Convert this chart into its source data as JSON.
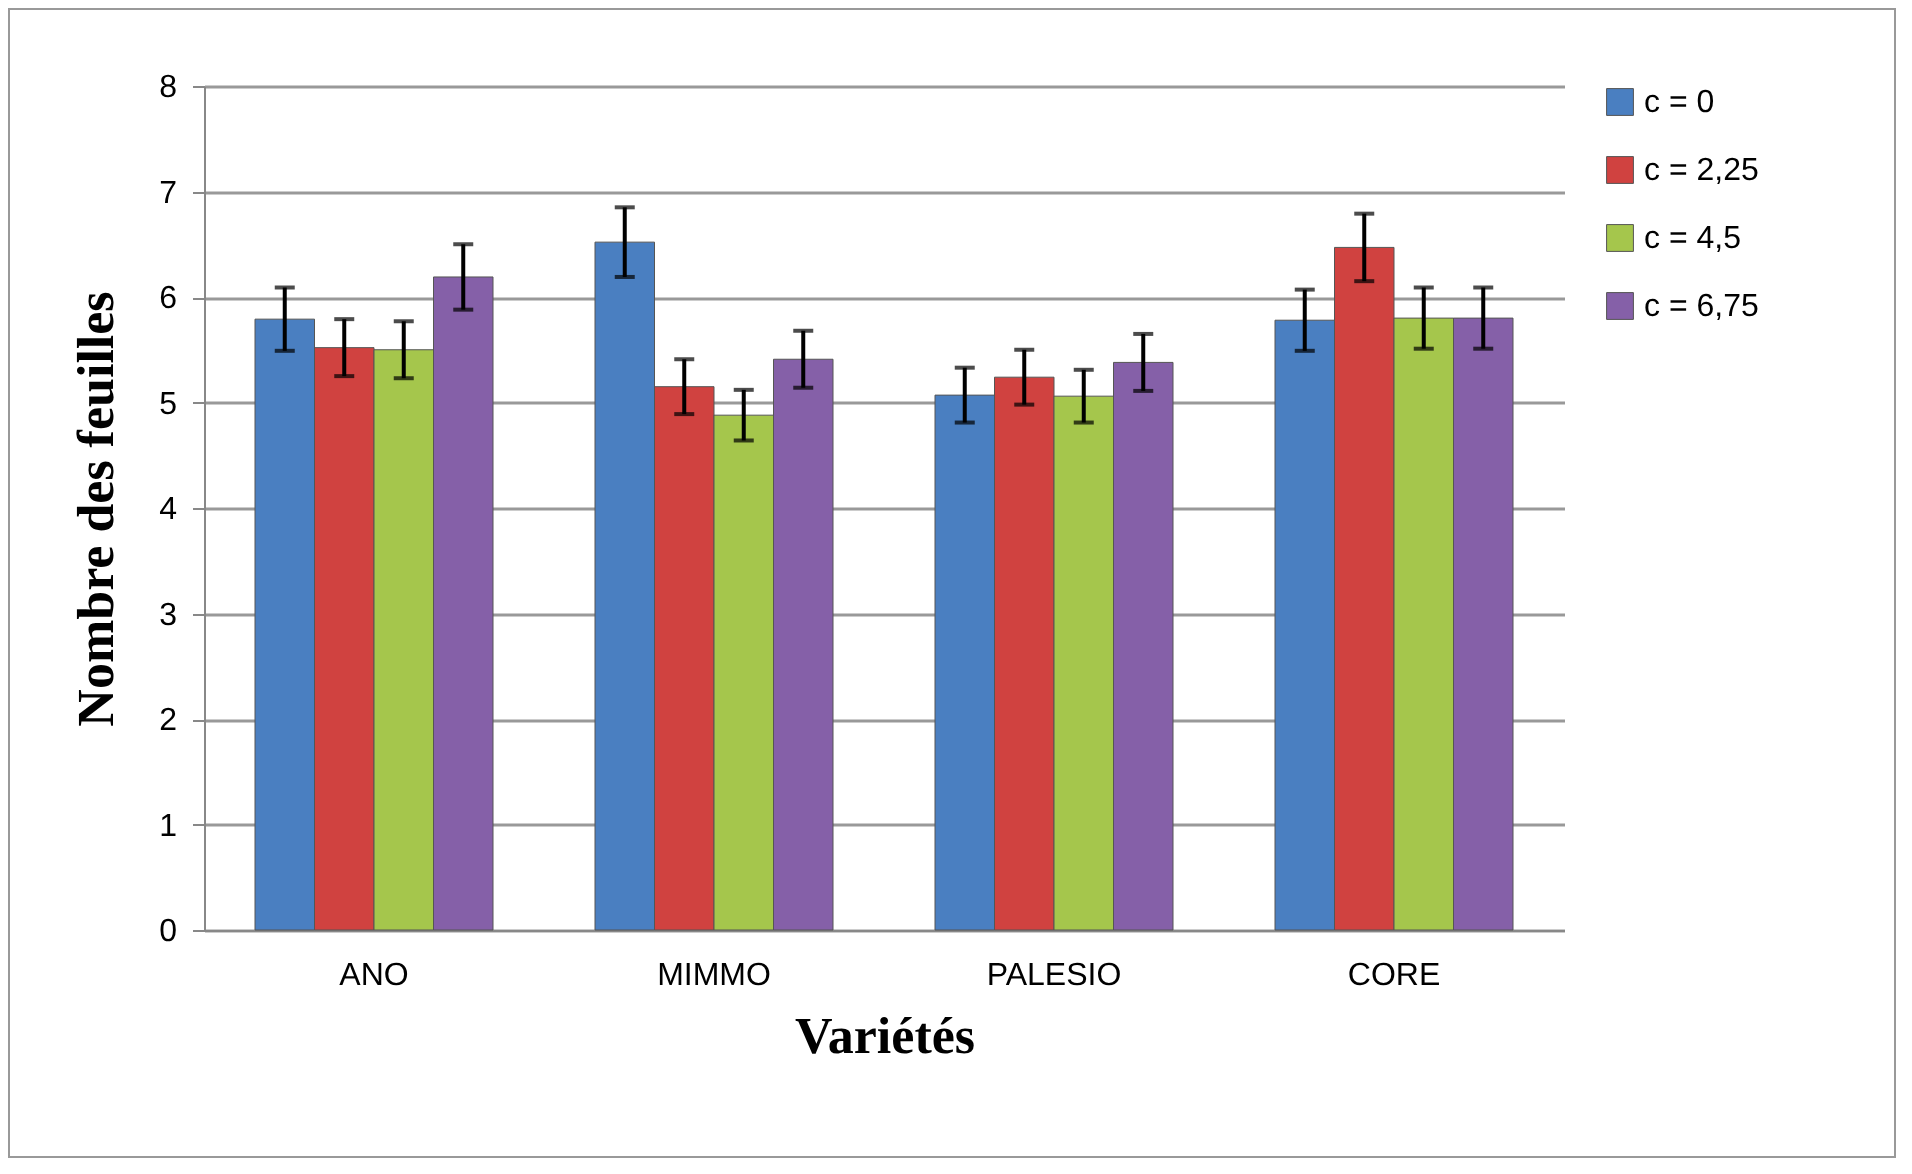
{
  "chart_data": {
    "type": "bar",
    "xlabel": "Variétés",
    "ylabel": "Nombre des feuilles",
    "categories": [
      "ANO",
      "MIMMO",
      "PALESIO",
      "CORE"
    ],
    "series": [
      {
        "name": "c = 0",
        "color": "#4a7fc1",
        "values": [
          5.79,
          6.52,
          5.07,
          5.78
        ],
        "errors": [
          0.3,
          0.33,
          0.26,
          0.29
        ]
      },
      {
        "name": "c = 2,25",
        "color": "#d04240",
        "values": [
          5.52,
          5.15,
          5.24,
          6.47
        ],
        "errors": [
          0.27,
          0.26,
          0.26,
          0.32
        ]
      },
      {
        "name": "c = 4,5",
        "color": "#a5c64c",
        "values": [
          5.5,
          4.88,
          5.06,
          5.8
        ],
        "errors": [
          0.27,
          0.24,
          0.25,
          0.29
        ]
      },
      {
        "name": "c = 6,75",
        "color": "#8560a8",
        "values": [
          6.19,
          5.41,
          5.38,
          5.8
        ],
        "errors": [
          0.31,
          0.27,
          0.27,
          0.29
        ]
      }
    ],
    "ylim": [
      0,
      8
    ],
    "yticks": [
      0,
      1,
      2,
      3,
      4,
      5,
      6,
      7,
      8
    ],
    "grid": "y",
    "legend": "right"
  }
}
